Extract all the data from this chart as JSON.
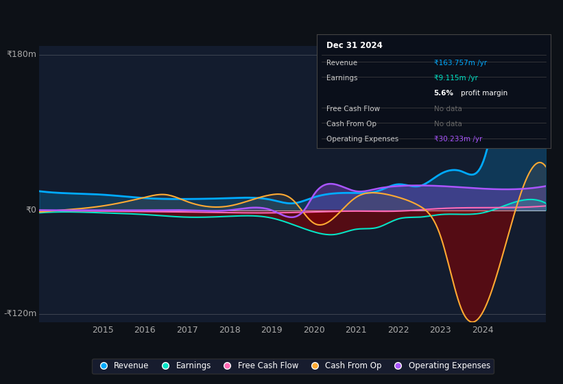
{
  "bg_color": "#0d1117",
  "chart_bg": "#131c2e",
  "y_label_top": "₹180m",
  "y_label_zero": "₹0",
  "y_label_bottom": "-₹120m",
  "x_ticks": [
    2015,
    2016,
    2017,
    2018,
    2019,
    2020,
    2021,
    2022,
    2023,
    2024
  ],
  "ylim": [
    -130,
    190
  ],
  "xlim": [
    2013.5,
    2025.5
  ],
  "colors": {
    "revenue": "#00aaff",
    "earnings": "#00e5c8",
    "free_cash_flow": "#ff69b4",
    "cash_from_op": "#ffaa33",
    "operating_expenses": "#aa55ff"
  },
  "info_box": {
    "date": "Dec 31 2024",
    "revenue": "₹163.757m /yr",
    "earnings": "₹9.115m /yr",
    "profit_margin": "5.6% profit margin",
    "free_cash_flow": "No data",
    "cash_from_op": "No data",
    "operating_expenses": "₹30.233m /yr"
  },
  "legend": [
    "Revenue",
    "Earnings",
    "Free Cash Flow",
    "Cash From Op",
    "Operating Expenses"
  ]
}
